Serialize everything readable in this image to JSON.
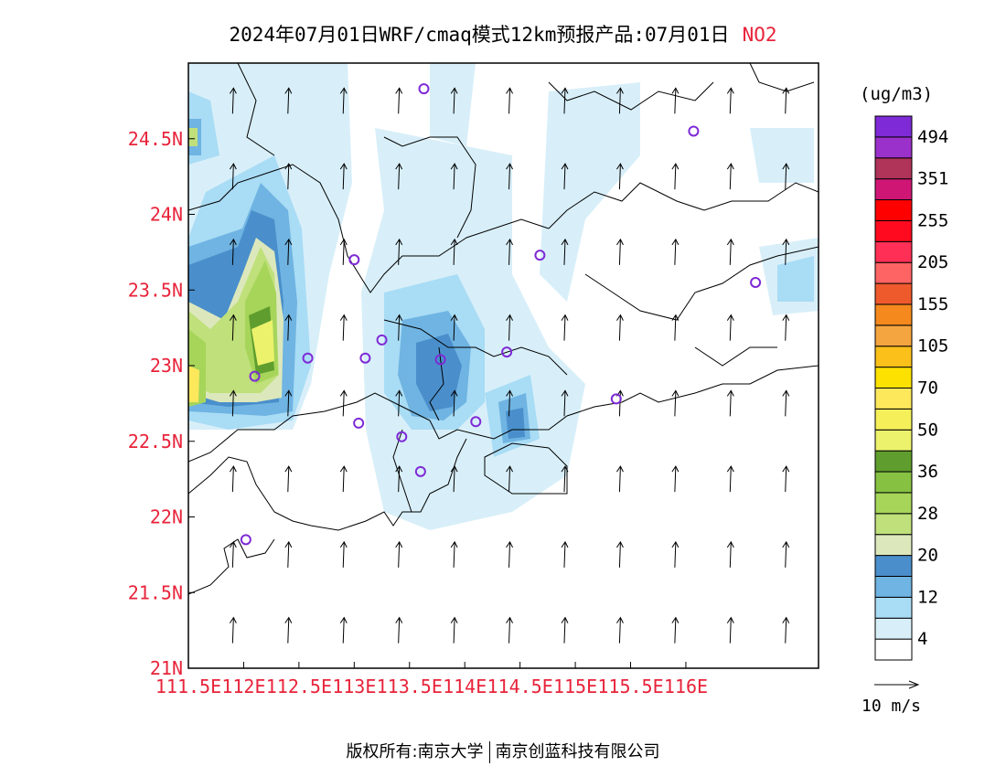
{
  "title": {
    "main": "2024年07月01日WRF/cmaq模式12km预报产品:07月01日",
    "pollutant": "NO2"
  },
  "map": {
    "lon_labels": [
      "111.5E",
      "112E",
      "112.5E",
      "113E",
      "113.5E",
      "114E",
      "114.5E",
      "115E",
      "115.5E",
      "116E"
    ],
    "lat_labels": [
      "21N",
      "21.5N",
      "22N",
      "22.5N",
      "23N",
      "23.5N",
      "24N",
      "24.5N"
    ],
    "lon_range": [
      111.5,
      117.2
    ],
    "lat_range": [
      21.0,
      25.0
    ],
    "stations": [
      {
        "lon": 113.63,
        "lat": 24.83
      },
      {
        "lon": 116.07,
        "lat": 24.55
      },
      {
        "lon": 113.0,
        "lat": 23.7
      },
      {
        "lon": 114.68,
        "lat": 23.73
      },
      {
        "lon": 116.63,
        "lat": 23.55
      },
      {
        "lon": 113.25,
        "lat": 23.17
      },
      {
        "lon": 112.58,
        "lat": 23.05
      },
      {
        "lon": 113.1,
        "lat": 23.05
      },
      {
        "lon": 113.78,
        "lat": 23.04
      },
      {
        "lon": 114.38,
        "lat": 23.09
      },
      {
        "lon": 112.1,
        "lat": 22.93
      },
      {
        "lon": 115.37,
        "lat": 22.78
      },
      {
        "lon": 113.04,
        "lat": 22.62
      },
      {
        "lon": 114.1,
        "lat": 22.63
      },
      {
        "lon": 113.43,
        "lat": 22.53
      },
      {
        "lon": 113.6,
        "lat": 22.3
      },
      {
        "lon": 112.02,
        "lat": 21.85
      }
    ],
    "wind_direction": "southerly"
  },
  "colorbar": {
    "unit": "(ug/m3)",
    "colors": [
      "#ffffff",
      "#d8eff9",
      "#a9dcf5",
      "#6fb4e2",
      "#4a8fcb",
      "#dce8bc",
      "#bfe07a",
      "#a6d55a",
      "#86c142",
      "#5f9e2e",
      "#ecf26c",
      "#f5f05a",
      "#fde85c",
      "#fde100",
      "#fbc01a",
      "#f5a540",
      "#f5891e",
      "#ef5a2c",
      "#ff6464",
      "#ff2f55",
      "#ff0a1e",
      "#ff0000",
      "#d01675",
      "#b0335a",
      "#9b31cb",
      "#7e2ad6"
    ],
    "labels": [
      "4",
      "12",
      "20",
      "28",
      "36",
      "50",
      "70",
      "105",
      "155",
      "205",
      "255",
      "351",
      "494"
    ]
  },
  "reference_vector": "10 m/s",
  "footer": {
    "left": "版权所有:南京大学",
    "right": "南京创蓝科技有限公司"
  }
}
